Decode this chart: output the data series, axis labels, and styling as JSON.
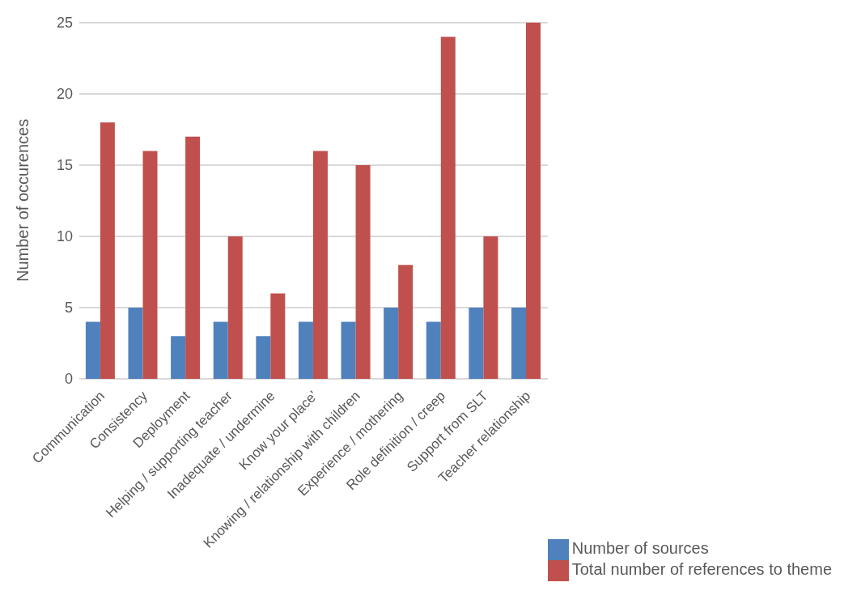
{
  "chart_data": {
    "type": "bar",
    "ylabel": "Number of occurences",
    "categories": [
      "Communication",
      "Consistency",
      "Deployment",
      "Helping / supporting teacher",
      "Inadequate / undermine",
      "Know your place'",
      "Knowing / relationship with children",
      "Experience / mothering",
      "Role definition / creep",
      "Support from SLT",
      "Teacher relationship"
    ],
    "series": [
      {
        "name": "Number of sources",
        "color": "#4f81bd",
        "values": [
          4,
          5,
          3,
          4,
          3,
          4,
          4,
          5,
          4,
          5,
          5
        ]
      },
      {
        "name": "Total number of references to theme",
        "color": "#c0504d",
        "values": [
          18,
          16,
          17,
          10,
          6,
          16,
          15,
          8,
          24,
          10,
          25
        ]
      }
    ],
    "ylim": [
      0,
      25
    ],
    "yticks": [
      0,
      5,
      10,
      15,
      20,
      25
    ],
    "grid": "y",
    "legend": "bottom right"
  }
}
